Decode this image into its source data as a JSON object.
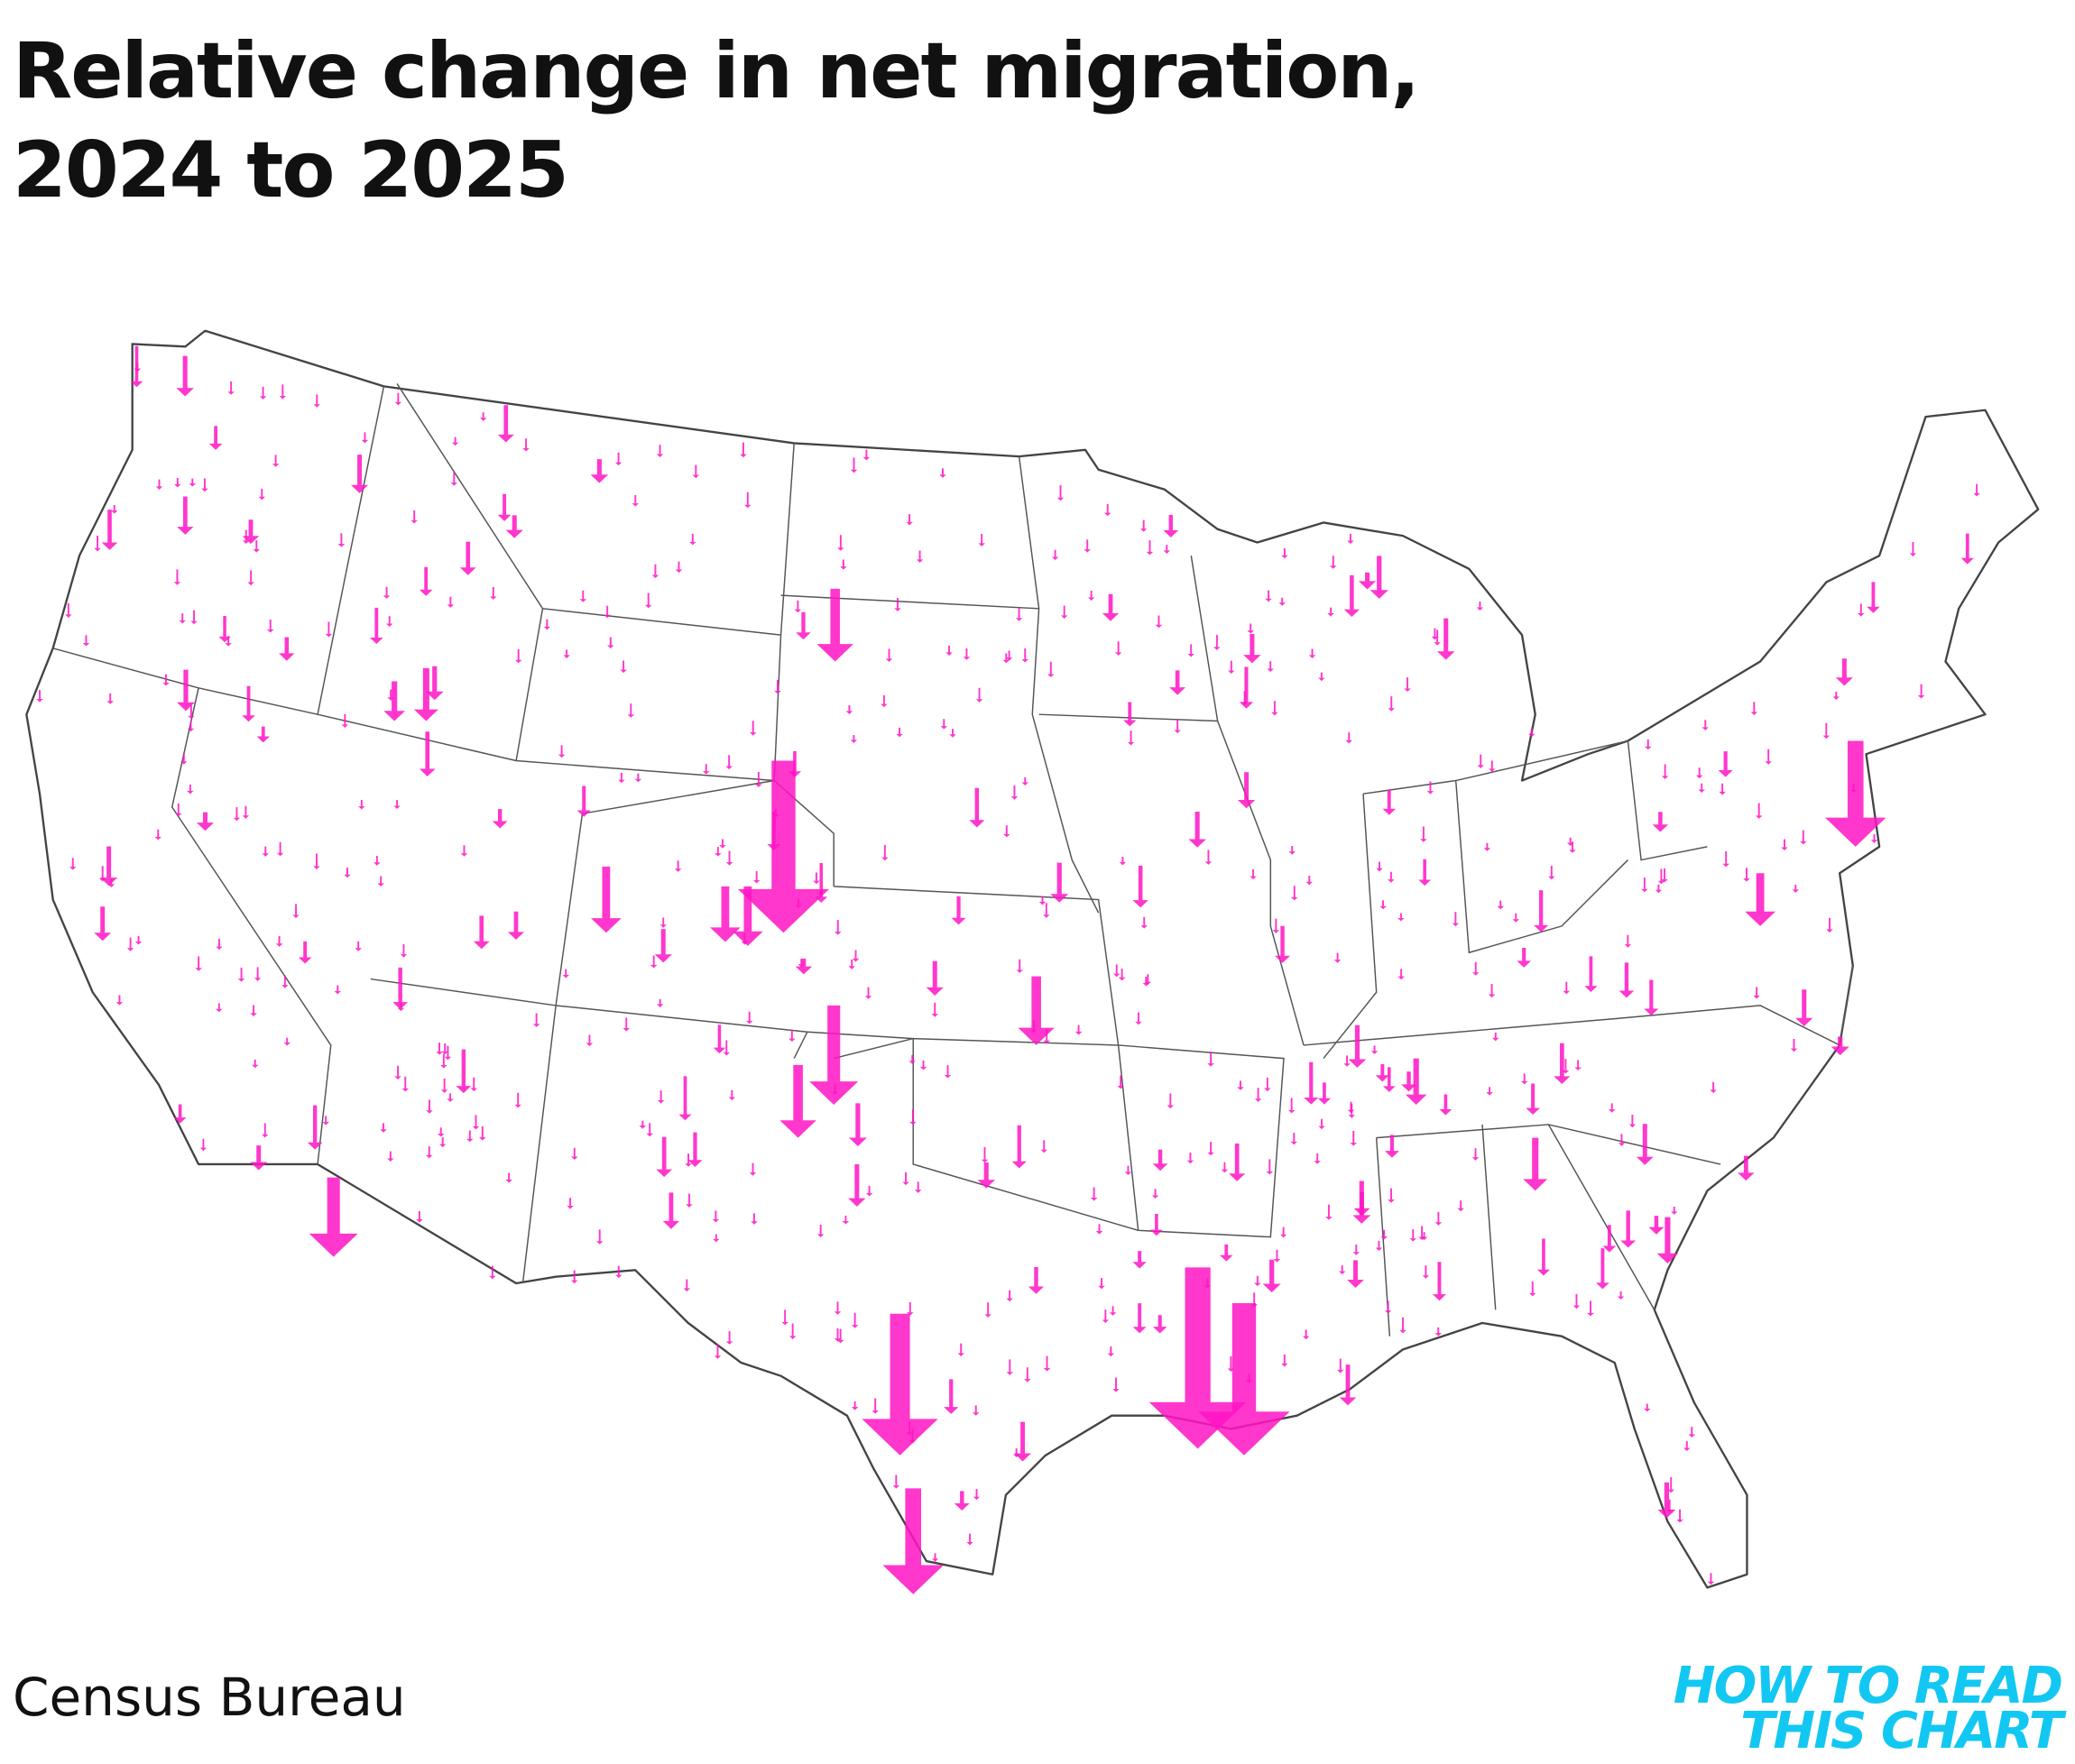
{
  "title": [
    "Relative change in net migration,",
    "2024 to 2025"
  ],
  "source": "Census Bureau",
  "logo": [
    "HOW TO READ",
    "THIS CHART"
  ]
}
